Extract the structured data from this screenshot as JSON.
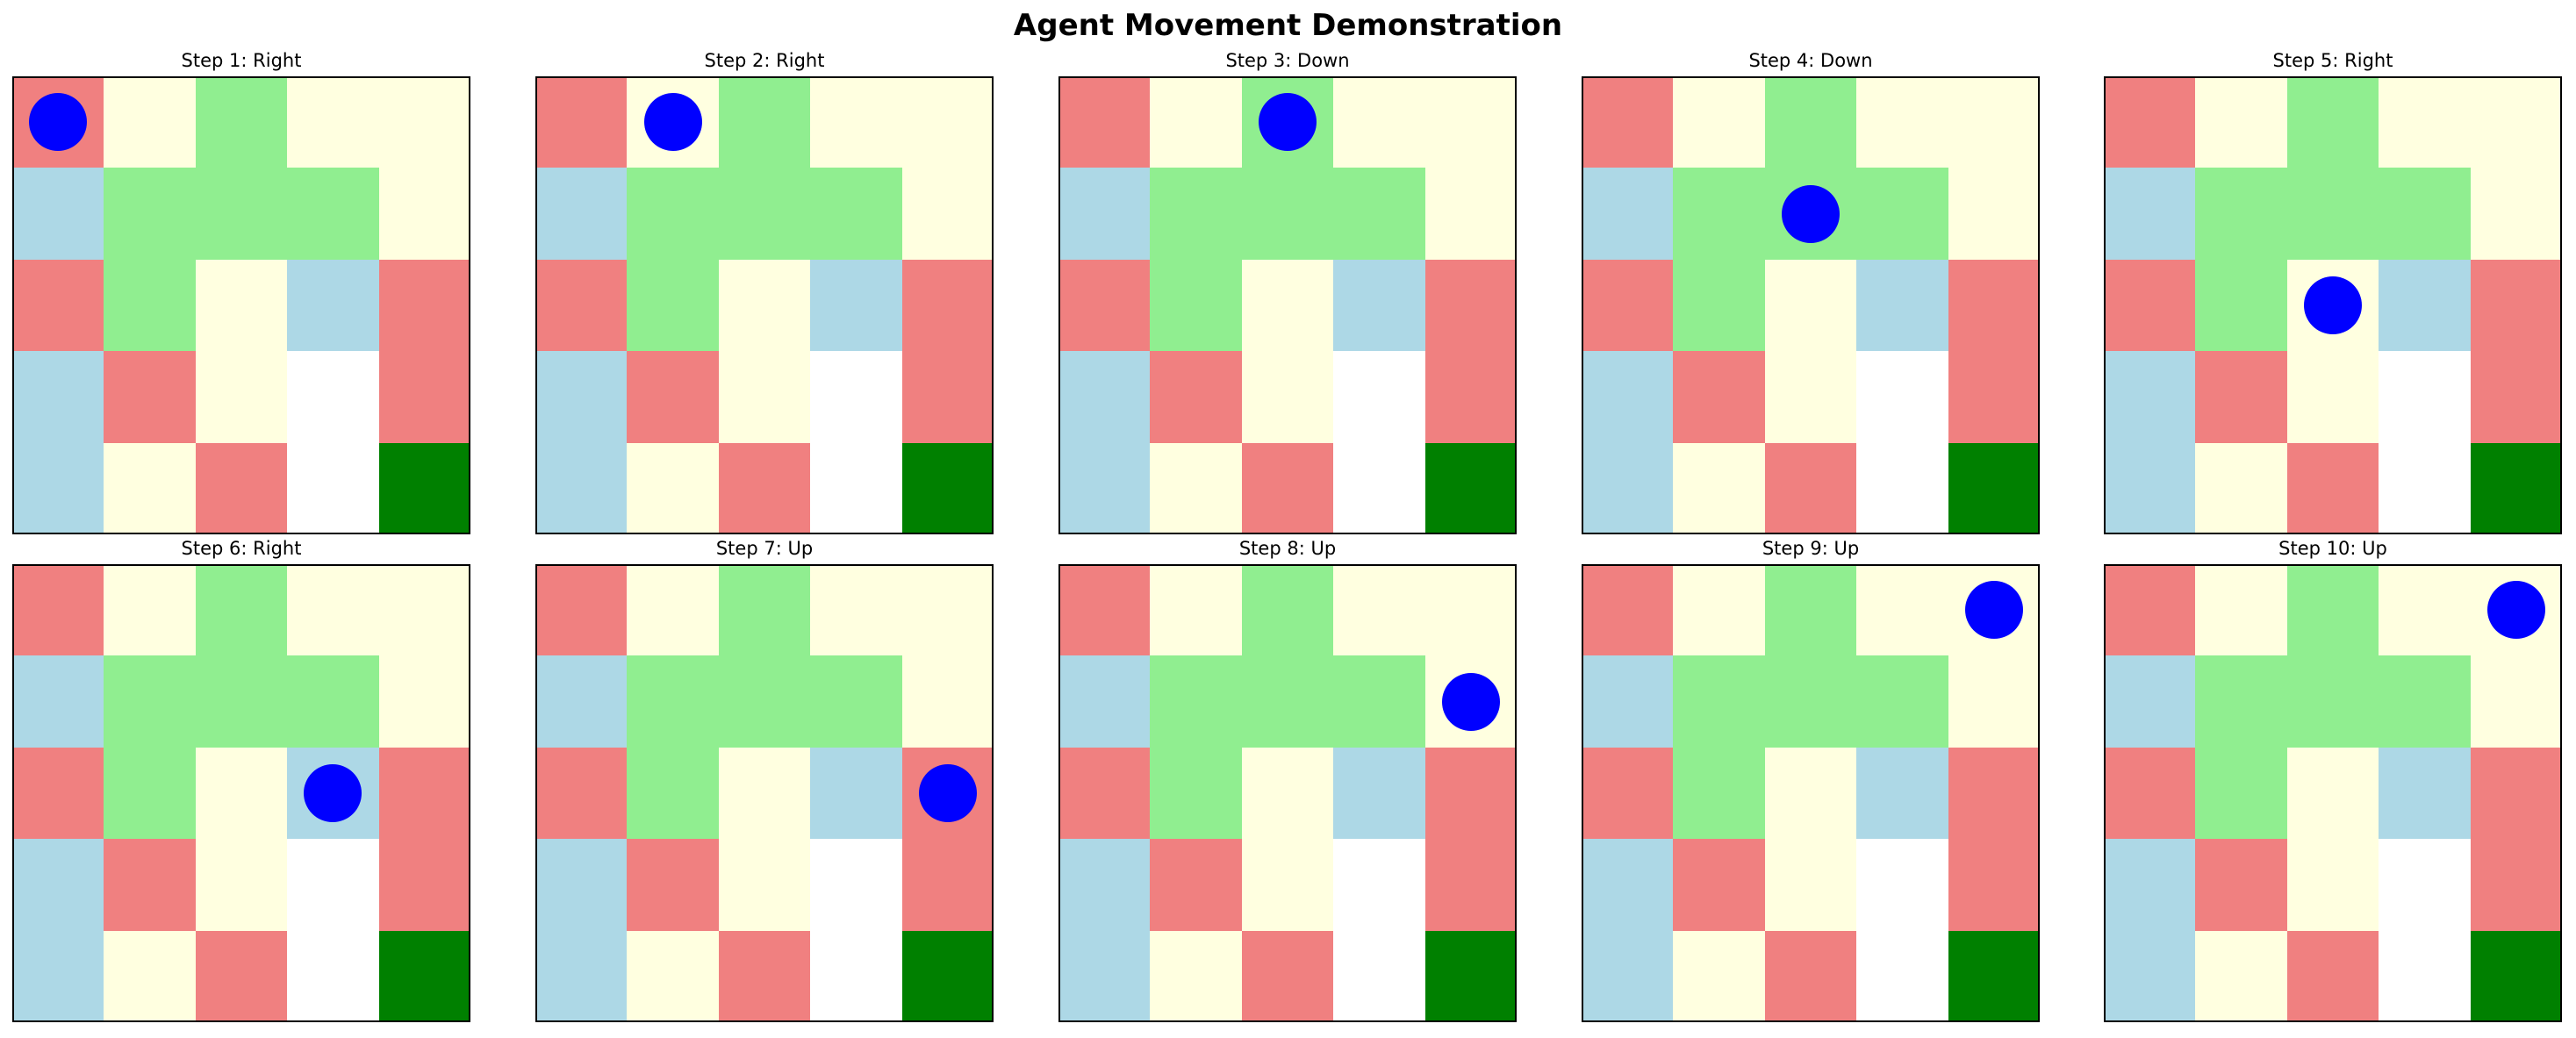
{
  "title": "Agent Movement Demonstration",
  "colors": {
    "R": "#f08080",
    "Y": "#ffffe0",
    "G": "#90ee90",
    "B": "#add8e6",
    "W": "#ffffff",
    "D": "#008000",
    "agent": "#0000ff"
  },
  "grid": [
    [
      "R",
      "Y",
      "G",
      "Y",
      "Y"
    ],
    [
      "B",
      "G",
      "G",
      "G",
      "Y"
    ],
    [
      "R",
      "G",
      "Y",
      "B",
      "R"
    ],
    [
      "B",
      "R",
      "Y",
      "W",
      "R"
    ],
    [
      "B",
      "Y",
      "R",
      "W",
      "D"
    ]
  ],
  "steps": [
    {
      "label": "Step 1: Right",
      "agent": {
        "row": 0,
        "col": 0
      }
    },
    {
      "label": "Step 2: Right",
      "agent": {
        "row": 0,
        "col": 1
      }
    },
    {
      "label": "Step 3: Down",
      "agent": {
        "row": 0,
        "col": 2
      }
    },
    {
      "label": "Step 4: Down",
      "agent": {
        "row": 1,
        "col": 2
      }
    },
    {
      "label": "Step 5: Right",
      "agent": {
        "row": 2,
        "col": 2
      }
    },
    {
      "label": "Step 6: Right",
      "agent": {
        "row": 2,
        "col": 3
      }
    },
    {
      "label": "Step 7: Up",
      "agent": {
        "row": 2,
        "col": 4
      }
    },
    {
      "label": "Step 8: Up",
      "agent": {
        "row": 1,
        "col": 4
      }
    },
    {
      "label": "Step 9: Up",
      "agent": {
        "row": 0,
        "col": 4
      }
    },
    {
      "label": "Step 10: Up",
      "agent": {
        "row": 0,
        "col": 4
      }
    }
  ]
}
